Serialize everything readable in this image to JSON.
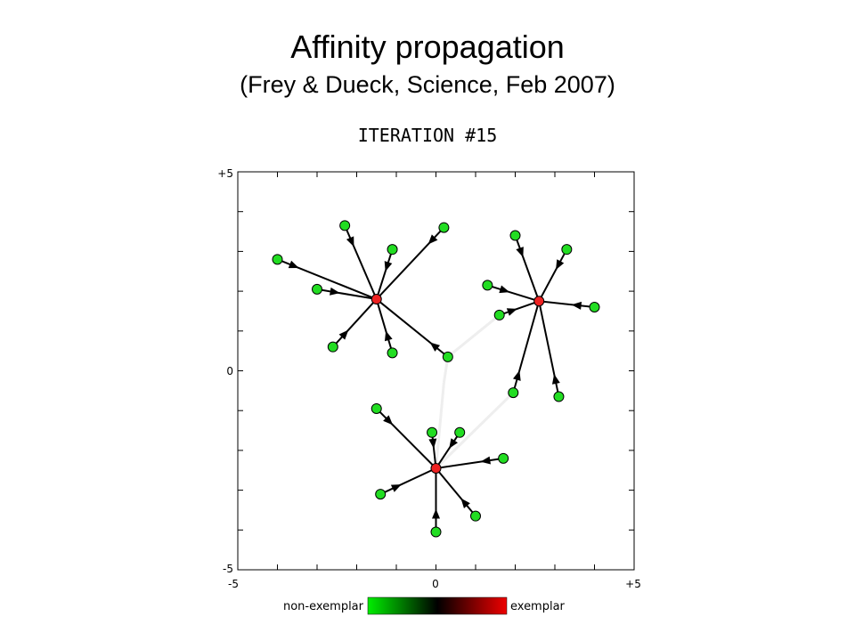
{
  "header": {
    "title": "Affinity propagation",
    "subtitle": "(Frey & Dueck, Science, Feb 2007)",
    "iteration": "ITERATION #15"
  },
  "axes": {
    "xlim": [
      -5,
      5
    ],
    "ylim": [
      -5,
      5
    ],
    "x_ticks": [
      "-5",
      "0",
      "+5"
    ],
    "y_ticks": [
      "+5",
      "0",
      "-5"
    ]
  },
  "legend": {
    "left_label": "non-exemplar",
    "right_label": "exemplar",
    "colors": [
      "#00ee00",
      "#000000",
      "#ee0000"
    ]
  },
  "colors": {
    "non_exemplar": "#22dd22",
    "exemplar": "#ee2222",
    "edge": "#000000",
    "weak_edge": "#eeeeee"
  },
  "chart_data": {
    "type": "scatter",
    "xlim": [
      -5,
      5
    ],
    "ylim": [
      -5,
      5
    ],
    "exemplars": [
      {
        "id": "A",
        "x": -1.5,
        "y": 1.8
      },
      {
        "id": "B",
        "x": 2.6,
        "y": 1.75
      },
      {
        "id": "C",
        "x": 0.0,
        "y": -2.45
      }
    ],
    "points": [
      {
        "x": -4.0,
        "y": 2.8,
        "exemplar": "A"
      },
      {
        "x": -3.0,
        "y": 2.05,
        "exemplar": "A"
      },
      {
        "x": -2.3,
        "y": 3.65,
        "exemplar": "A"
      },
      {
        "x": -1.1,
        "y": 3.05,
        "exemplar": "A"
      },
      {
        "x": 0.2,
        "y": 3.6,
        "exemplar": "A"
      },
      {
        "x": -2.6,
        "y": 0.6,
        "exemplar": "A"
      },
      {
        "x": -1.1,
        "y": 0.45,
        "exemplar": "A"
      },
      {
        "x": 0.3,
        "y": 0.35,
        "exemplar": "A"
      },
      {
        "x": 2.0,
        "y": 3.4,
        "exemplar": "B"
      },
      {
        "x": 3.3,
        "y": 3.05,
        "exemplar": "B"
      },
      {
        "x": 1.3,
        "y": 2.15,
        "exemplar": "B"
      },
      {
        "x": 1.6,
        "y": 1.4,
        "exemplar": "B"
      },
      {
        "x": 4.0,
        "y": 1.6,
        "exemplar": "B"
      },
      {
        "x": 1.95,
        "y": -0.55,
        "exemplar": "B"
      },
      {
        "x": 3.1,
        "y": -0.65,
        "exemplar": "B"
      },
      {
        "x": -1.5,
        "y": -0.95,
        "exemplar": "C"
      },
      {
        "x": -0.1,
        "y": -1.55,
        "exemplar": "C"
      },
      {
        "x": 0.6,
        "y": -1.55,
        "exemplar": "C"
      },
      {
        "x": 1.7,
        "y": -2.2,
        "exemplar": "C"
      },
      {
        "x": -1.4,
        "y": -3.1,
        "exemplar": "C"
      },
      {
        "x": 1.0,
        "y": -3.65,
        "exemplar": "C"
      },
      {
        "x": 0.0,
        "y": -4.05,
        "exemplar": "C"
      }
    ],
    "weak_links": [
      {
        "from": [
          0.3,
          0.35
        ],
        "to": [
          1.6,
          1.4
        ]
      },
      {
        "from": [
          0.3,
          0.35
        ],
        "to": [
          0.2,
          -0.3
        ]
      },
      {
        "from": [
          0.2,
          -0.3
        ],
        "to": [
          0.0,
          -2.45
        ]
      },
      {
        "from": [
          1.95,
          -0.55
        ],
        "to": [
          0.0,
          -2.45
        ]
      }
    ]
  }
}
